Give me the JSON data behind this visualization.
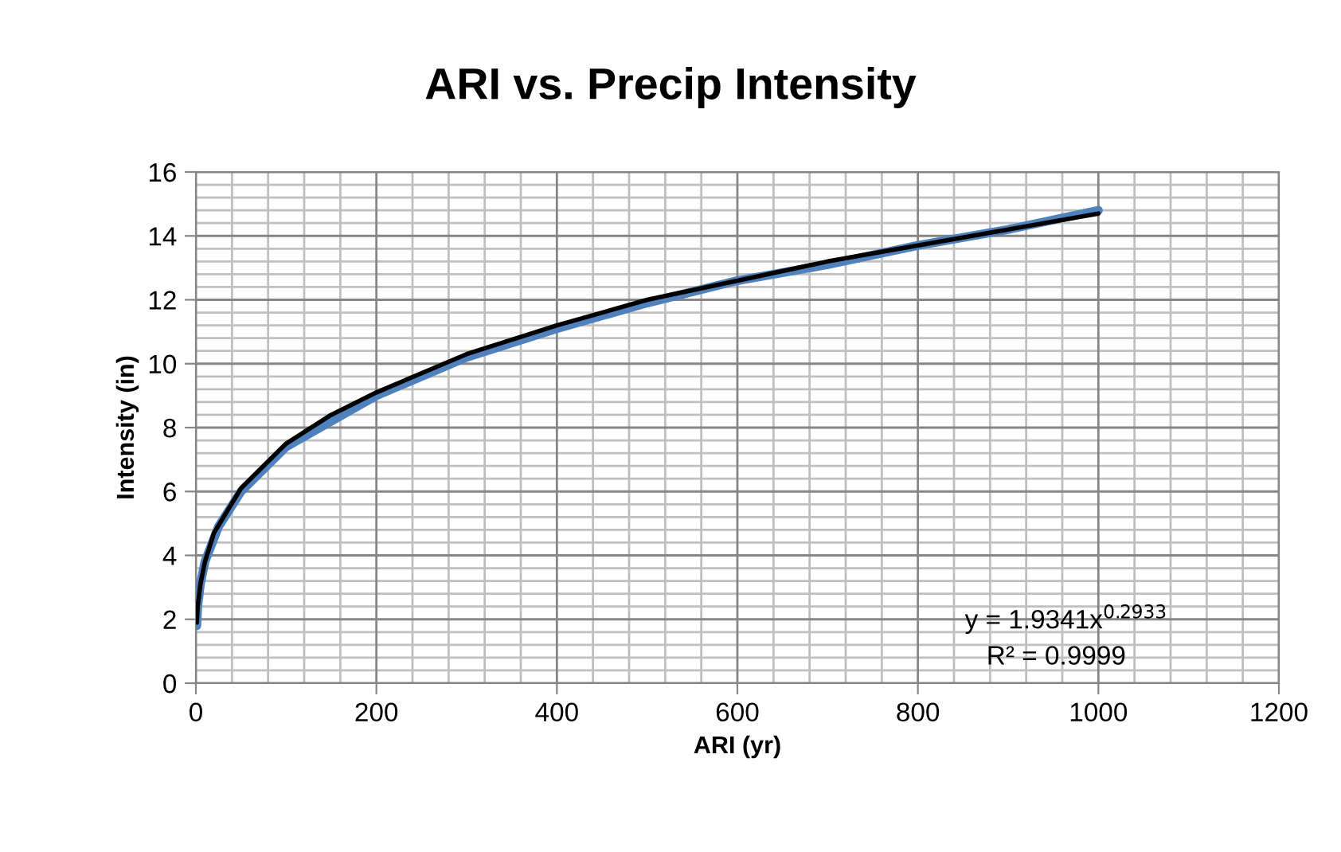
{
  "chart_data": {
    "type": "line",
    "title": "ARI vs. Precip Intensity",
    "xlabel": "ARI (yr)",
    "ylabel": "Intensity (in)",
    "series": [
      {
        "color": "#4f81bd",
        "x": [
          1,
          2,
          5,
          10,
          25,
          50,
          100,
          200,
          300,
          400,
          500,
          600,
          700,
          800,
          900,
          1000
        ],
        "values": [
          1.8,
          2.4,
          3.1,
          3.8,
          4.9,
          6.0,
          7.4,
          9.0,
          10.2,
          11.1,
          11.9,
          12.6,
          13.1,
          13.7,
          14.2,
          14.8
        ]
      },
      {
        "type": "line",
        "color": "#000000",
        "x": [
          1,
          2,
          5,
          10,
          20,
          50,
          100,
          150,
          200,
          300,
          400,
          500,
          600,
          700,
          800,
          900,
          1000
        ],
        "values": [
          1.9,
          2.4,
          3.1,
          3.8,
          4.7,
          6.1,
          7.5,
          8.4,
          9.1,
          10.3,
          11.2,
          12.0,
          12.6,
          13.2,
          13.7,
          14.2,
          14.7
        ]
      }
    ],
    "annotations": [
      "y = 1.9341x$^{0.2933}$",
      "R² = 0.9999"
    ],
    "xlim": [
      0,
      1200
    ],
    "xticks": [
      0,
      200,
      400,
      600,
      800,
      1000,
      1200
    ],
    "ylim": [
      0,
      16
    ],
    "yticks": [
      0,
      2,
      4,
      6,
      8,
      10,
      12,
      14,
      16
    ],
    "grid": true
  }
}
